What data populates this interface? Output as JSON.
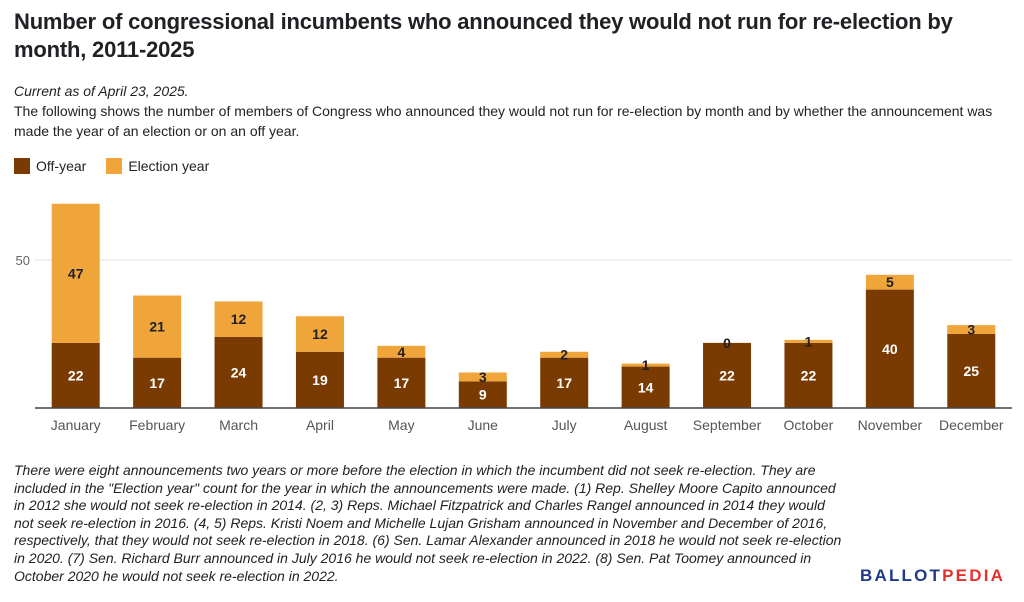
{
  "title": "Number of congressional incumbents who announced they would not run for re-election by month, 2011-2025",
  "current_as_of": "Current as of April 23, 2025.",
  "description": "The following shows the number of members of Congress who announced they would not run for re-election by month and by whether the announcement was made the year of an election or on an off year.",
  "footnote": "There were eight announcements two years or more before the election in which the incumbent did not seek re-election. They are included in the \"Election year\" count for the year in which the announcements were made. (1) Rep. Shelley Moore Capito announced in 2012 she would not seek re-election in 2014. (2, 3) Reps. Michael Fitzpatrick and Charles Rangel announced in 2014 they would not seek re-election in 2016. (4, 5) Reps. Kristi Noem and Michelle Lujan Grisham announced in November and December of 2016, respectively, that they would not seek re-election in 2018. (6) Sen. Lamar Alexander announced in 2018 he would not seek re-election in 2020. (7) Sen. Richard Burr announced in July 2016 he would not seek re-election in 2022. (8) Sen. Pat Toomey announced in October 2020 he would not seek re-election in 2022.",
  "logo": {
    "part1": "BALLOT",
    "part2": "PEDIA"
  },
  "colors": {
    "off_year": "#7a3b03",
    "election_year": "#f0a53a",
    "axis": "#444444",
    "grid": "#e0e0e0"
  },
  "chart_data": {
    "type": "bar",
    "stacked": true,
    "categories": [
      "January",
      "February",
      "March",
      "April",
      "May",
      "June",
      "July",
      "August",
      "September",
      "October",
      "November",
      "December"
    ],
    "series": [
      {
        "name": "Off-year",
        "values": [
          22,
          17,
          24,
          19,
          17,
          9,
          17,
          14,
          22,
          22,
          40,
          25
        ]
      },
      {
        "name": "Election year",
        "values": [
          47,
          21,
          12,
          12,
          4,
          3,
          2,
          1,
          0,
          1,
          5,
          3
        ]
      }
    ],
    "yticks": [
      50
    ],
    "ylim": [
      0,
      70
    ],
    "legend_position": "top-left",
    "grid": true,
    "data_labels": true
  }
}
